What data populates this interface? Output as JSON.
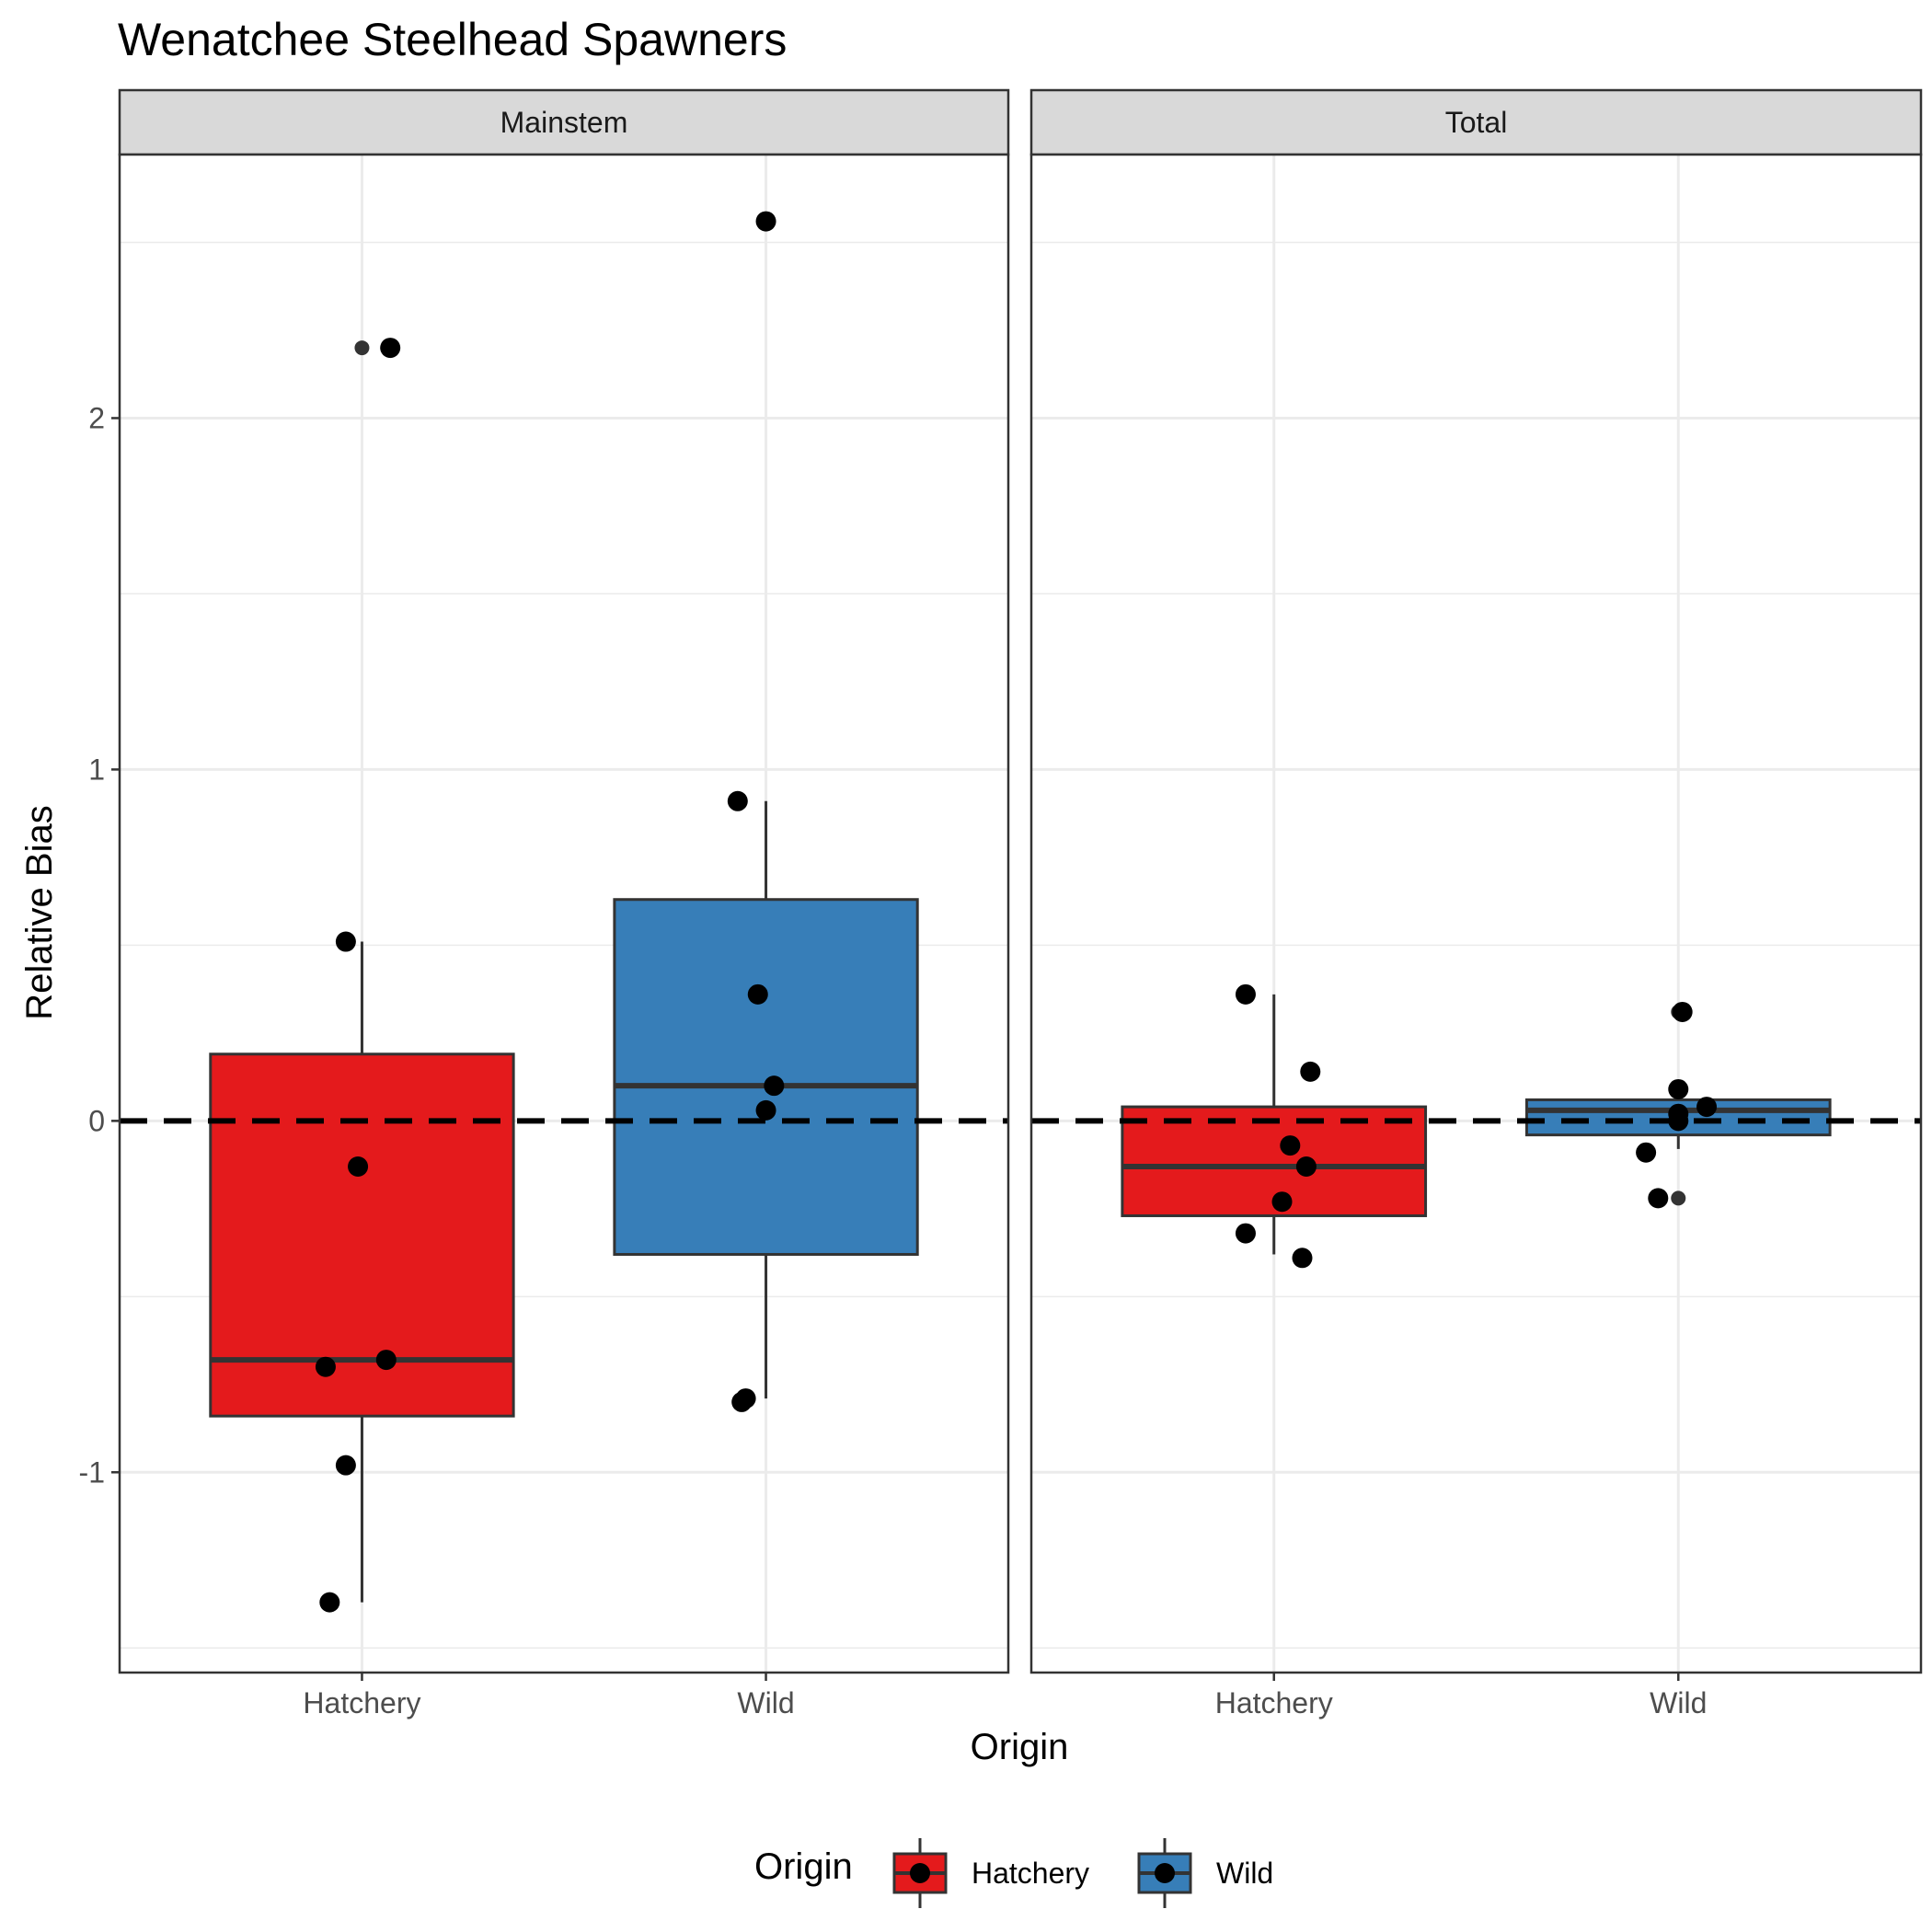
{
  "chart_data": {
    "type": "box",
    "title": "Wenatchee Steelhead Spawners",
    "xlabel": "Origin",
    "ylabel": "Relative Bias",
    "ylim": [
      -1.57,
      2.75
    ],
    "yticks": [
      -1,
      0,
      1,
      2
    ],
    "ytick_labels": [
      "-1",
      "0",
      "1",
      "2"
    ],
    "grid": true,
    "reference_line": {
      "y": 0,
      "style": "dashed",
      "color": "#000000"
    },
    "categories": [
      "Hatchery",
      "Wild"
    ],
    "colors": {
      "Hatchery": "#E41A1C",
      "Wild": "#377EB8"
    },
    "legend": {
      "title": "Origin",
      "position": "bottom",
      "entries": [
        "Hatchery",
        "Wild"
      ]
    },
    "facets": [
      {
        "label": "Mainstem",
        "boxes": [
          {
            "category": "Hatchery",
            "whisker_low": -1.37,
            "q1": -0.84,
            "median": -0.68,
            "q3": 0.19,
            "whisker_high": 0.51,
            "outliers": [
              2.2
            ]
          },
          {
            "category": "Wild",
            "whisker_low": -0.79,
            "q1": -0.38,
            "median": 0.1,
            "q3": 0.63,
            "whisker_high": 0.91,
            "outliers": [
              2.56
            ]
          }
        ],
        "points": [
          {
            "category": "Hatchery",
            "jitter": 0.07,
            "y": 2.2
          },
          {
            "category": "Hatchery",
            "jitter": -0.04,
            "y": 0.51
          },
          {
            "category": "Hatchery",
            "jitter": -0.01,
            "y": -0.13
          },
          {
            "category": "Hatchery",
            "jitter": 0.06,
            "y": -0.68
          },
          {
            "category": "Hatchery",
            "jitter": -0.09,
            "y": -0.7
          },
          {
            "category": "Hatchery",
            "jitter": -0.04,
            "y": -0.98
          },
          {
            "category": "Hatchery",
            "jitter": -0.08,
            "y": -1.37
          },
          {
            "category": "Wild",
            "jitter": 0.0,
            "y": 2.56
          },
          {
            "category": "Wild",
            "jitter": -0.07,
            "y": 0.91
          },
          {
            "category": "Wild",
            "jitter": -0.02,
            "y": 0.36
          },
          {
            "category": "Wild",
            "jitter": 0.02,
            "y": 0.1
          },
          {
            "category": "Wild",
            "jitter": 0.0,
            "y": 0.03
          },
          {
            "category": "Wild",
            "jitter": -0.05,
            "y": -0.79
          },
          {
            "category": "Wild",
            "jitter": -0.06,
            "y": -0.8
          }
        ]
      },
      {
        "label": "Total",
        "boxes": [
          {
            "category": "Hatchery",
            "whisker_low": -0.38,
            "q1": -0.27,
            "median": -0.13,
            "q3": 0.04,
            "whisker_high": 0.36,
            "outliers": []
          },
          {
            "category": "Wild",
            "whisker_low": -0.08,
            "q1": -0.04,
            "median": 0.03,
            "q3": 0.06,
            "whisker_high": 0.06,
            "outliers": [
              0.31,
              -0.22
            ]
          }
        ],
        "points": [
          {
            "category": "Hatchery",
            "jitter": -0.07,
            "y": 0.36
          },
          {
            "category": "Hatchery",
            "jitter": 0.09,
            "y": 0.14
          },
          {
            "category": "Hatchery",
            "jitter": 0.04,
            "y": -0.07
          },
          {
            "category": "Hatchery",
            "jitter": 0.08,
            "y": -0.13
          },
          {
            "category": "Hatchery",
            "jitter": 0.02,
            "y": -0.23
          },
          {
            "category": "Hatchery",
            "jitter": -0.07,
            "y": -0.32
          },
          {
            "category": "Hatchery",
            "jitter": 0.07,
            "y": -0.39
          },
          {
            "category": "Wild",
            "jitter": 0.01,
            "y": 0.31
          },
          {
            "category": "Wild",
            "jitter": 0.0,
            "y": 0.09
          },
          {
            "category": "Wild",
            "jitter": 0.07,
            "y": 0.04
          },
          {
            "category": "Wild",
            "jitter": 0.0,
            "y": 0.02
          },
          {
            "category": "Wild",
            "jitter": 0.0,
            "y": 0.0
          },
          {
            "category": "Wild",
            "jitter": -0.08,
            "y": -0.09
          },
          {
            "category": "Wild",
            "jitter": -0.05,
            "y": -0.22
          }
        ]
      }
    ]
  }
}
